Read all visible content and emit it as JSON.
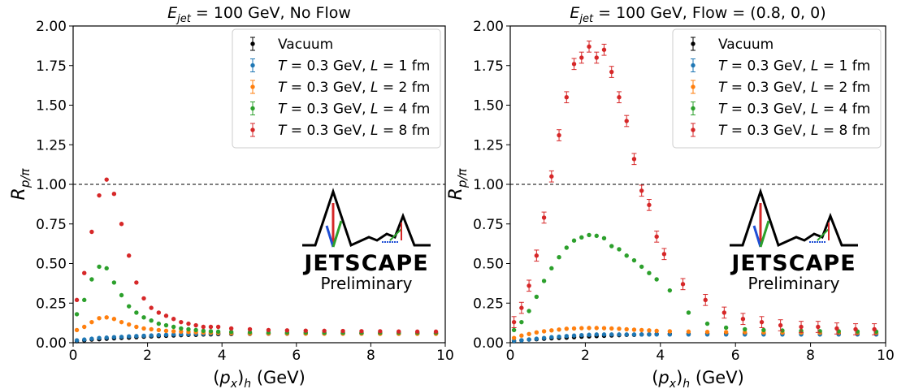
{
  "chart_data": [
    {
      "type": "scatter",
      "title": "E_jet = 100 GeV, No Flow",
      "title_parts": {
        "sym": "E",
        "sub": "jet",
        "rest": " = 100 GeV, No Flow"
      },
      "xlabel": "(p_x)_h (GeV)",
      "xlabel_parts": {
        "open": "(",
        "sym": "p",
        "sub": "x",
        "close": ")",
        "sub2": "h",
        "rest": " (GeV)"
      },
      "ylabel": "R_p/π",
      "ylabel_parts": {
        "sym": "R",
        "sub": "p/π"
      },
      "xlim": [
        0,
        10
      ],
      "ylim": [
        0,
        2
      ],
      "xticks": [
        "0",
        "2",
        "4",
        "6",
        "8",
        "10"
      ],
      "yticks": [
        "0.00",
        "0.25",
        "0.50",
        "0.75",
        "1.00",
        "1.25",
        "1.50",
        "1.75",
        "2.00"
      ],
      "reference_line": 1.0,
      "grid": false,
      "legend_position": "top-right",
      "logo": {
        "text": "JETSCAPE",
        "subtext": "Preliminary"
      },
      "series": [
        {
          "name": "Vacuum",
          "color": "#000000",
          "x": [
            0.1,
            0.3,
            0.5,
            0.7,
            0.9,
            1.1,
            1.3,
            1.5,
            1.7,
            1.9,
            2.1,
            2.3,
            2.5,
            2.7,
            2.9,
            3.1,
            3.3,
            3.5,
            3.7,
            3.9,
            4.25,
            4.75,
            5.25,
            5.75,
            6.25,
            6.75,
            7.25,
            7.75,
            8.25,
            8.75,
            9.25,
            9.75
          ],
          "y": [
            0.01,
            0.015,
            0.02,
            0.022,
            0.025,
            0.028,
            0.03,
            0.032,
            0.035,
            0.038,
            0.04,
            0.042,
            0.044,
            0.046,
            0.048,
            0.05,
            0.05,
            0.052,
            0.053,
            0.054,
            0.055,
            0.056,
            0.057,
            0.057,
            0.058,
            0.058,
            0.058,
            0.058,
            0.058,
            0.058,
            0.058,
            0.058
          ],
          "err": 0.006
        },
        {
          "name": "T = 0.3 GeV, L = 1 fm",
          "label_parts": {
            "T": "T",
            "mid": " = 0.3 GeV, ",
            "L": "L",
            "end": " = 1 fm"
          },
          "color": "#1f77b4",
          "x": [
            0.1,
            0.3,
            0.5,
            0.7,
            0.9,
            1.1,
            1.3,
            1.5,
            1.7,
            1.9,
            2.1,
            2.3,
            2.5,
            2.7,
            2.9,
            3.1,
            3.3,
            3.5,
            3.7,
            3.9,
            4.25,
            4.75,
            5.25,
            5.75,
            6.25,
            6.75,
            7.25,
            7.75,
            8.25,
            8.75,
            9.25,
            9.75
          ],
          "y": [
            0.015,
            0.02,
            0.025,
            0.03,
            0.032,
            0.035,
            0.037,
            0.04,
            0.042,
            0.044,
            0.046,
            0.048,
            0.05,
            0.052,
            0.053,
            0.054,
            0.055,
            0.056,
            0.057,
            0.058,
            0.058,
            0.058,
            0.058,
            0.059,
            0.059,
            0.059,
            0.059,
            0.06,
            0.06,
            0.06,
            0.06,
            0.06
          ],
          "err": 0.006
        },
        {
          "name": "T = 0.3 GeV, L = 2 fm",
          "label_parts": {
            "T": "T",
            "mid": " = 0.3 GeV, ",
            "L": "L",
            "end": " = 2 fm"
          },
          "color": "#ff7f0e",
          "x": [
            0.1,
            0.3,
            0.5,
            0.7,
            0.9,
            1.1,
            1.3,
            1.5,
            1.7,
            1.9,
            2.1,
            2.3,
            2.5,
            2.7,
            2.9,
            3.1,
            3.3,
            3.5,
            3.7,
            3.9,
            4.25,
            4.75,
            5.25,
            5.75,
            6.25,
            6.75,
            7.25,
            7.75,
            8.25,
            8.75,
            9.25,
            9.75
          ],
          "y": [
            0.08,
            0.1,
            0.13,
            0.155,
            0.16,
            0.15,
            0.13,
            0.115,
            0.1,
            0.09,
            0.085,
            0.08,
            0.075,
            0.072,
            0.07,
            0.068,
            0.066,
            0.064,
            0.063,
            0.062,
            0.06,
            0.058,
            0.058,
            0.058,
            0.057,
            0.057,
            0.057,
            0.057,
            0.056,
            0.056,
            0.056,
            0.056
          ],
          "err": 0.007
        },
        {
          "name": "T = 0.3 GeV, L = 4 fm",
          "label_parts": {
            "T": "T",
            "mid": " = 0.3 GeV, ",
            "L": "L",
            "end": " = 4 fm"
          },
          "color": "#2ca02c",
          "x": [
            0.1,
            0.3,
            0.5,
            0.7,
            0.9,
            1.1,
            1.3,
            1.5,
            1.7,
            1.9,
            2.1,
            2.3,
            2.5,
            2.7,
            2.9,
            3.1,
            3.3,
            3.5,
            3.7,
            3.9,
            4.25,
            4.75,
            5.25,
            5.75,
            6.25,
            6.75,
            7.25,
            7.75,
            8.25,
            8.75,
            9.25,
            9.75
          ],
          "y": [
            0.18,
            0.27,
            0.4,
            0.48,
            0.47,
            0.38,
            0.3,
            0.23,
            0.19,
            0.16,
            0.14,
            0.12,
            0.11,
            0.1,
            0.09,
            0.085,
            0.08,
            0.075,
            0.072,
            0.07,
            0.068,
            0.066,
            0.065,
            0.064,
            0.064,
            0.063,
            0.063,
            0.063,
            0.063,
            0.063,
            0.063,
            0.063
          ],
          "err": 0.008
        },
        {
          "name": "T = 0.3 GeV, L = 8 fm",
          "label_parts": {
            "T": "T",
            "mid": " = 0.3 GeV, ",
            "L": "L",
            "end": " = 8 fm"
          },
          "color": "#d62728",
          "x": [
            0.1,
            0.3,
            0.5,
            0.7,
            0.9,
            1.1,
            1.3,
            1.5,
            1.7,
            1.9,
            2.1,
            2.3,
            2.5,
            2.7,
            2.9,
            3.1,
            3.3,
            3.5,
            3.7,
            3.9,
            4.25,
            4.75,
            5.25,
            5.75,
            6.25,
            6.75,
            7.25,
            7.75,
            8.25,
            8.75,
            9.25,
            9.75
          ],
          "y": [
            0.27,
            0.44,
            0.7,
            0.93,
            1.03,
            0.94,
            0.75,
            0.55,
            0.38,
            0.28,
            0.22,
            0.19,
            0.17,
            0.15,
            0.13,
            0.12,
            0.11,
            0.1,
            0.1,
            0.1,
            0.09,
            0.085,
            0.08,
            0.078,
            0.076,
            0.075,
            0.074,
            0.073,
            0.072,
            0.071,
            0.07,
            0.07
          ],
          "err": 0.012
        }
      ]
    },
    {
      "type": "scatter",
      "title": "E_jet = 100 GeV, Flow = (0.8, 0, 0)",
      "title_parts": {
        "sym": "E",
        "sub": "jet",
        "rest": " = 100 GeV, Flow = (0.8, 0, 0)"
      },
      "xlabel": "(p_x)_h (GeV)",
      "xlabel_parts": {
        "open": "(",
        "sym": "p",
        "sub": "x",
        "close": ")",
        "sub2": "h",
        "rest": " (GeV)"
      },
      "ylabel": "R_p/π",
      "ylabel_parts": {
        "sym": "R",
        "sub": "p/π"
      },
      "xlim": [
        0,
        10
      ],
      "ylim": [
        0,
        2
      ],
      "xticks": [
        "0",
        "2",
        "4",
        "6",
        "8",
        "10"
      ],
      "yticks": [
        "0.00",
        "0.25",
        "0.50",
        "0.75",
        "1.00",
        "1.25",
        "1.50",
        "1.75",
        "2.00"
      ],
      "reference_line": 1.0,
      "grid": false,
      "legend_position": "top-right",
      "logo": {
        "text": "JETSCAPE",
        "subtext": "Preliminary"
      },
      "series": [
        {
          "name": "Vacuum",
          "color": "#000000",
          "x": [
            0.1,
            0.3,
            0.5,
            0.7,
            0.9,
            1.1,
            1.3,
            1.5,
            1.7,
            1.9,
            2.1,
            2.3,
            2.5,
            2.7,
            2.9,
            3.1,
            3.3,
            3.5,
            3.7,
            3.9,
            4.25,
            4.75,
            5.25,
            5.75,
            6.25,
            6.75,
            7.25,
            7.75,
            8.25,
            8.75,
            9.25,
            9.75
          ],
          "y": [
            0.01,
            0.015,
            0.02,
            0.022,
            0.025,
            0.028,
            0.03,
            0.032,
            0.035,
            0.038,
            0.04,
            0.042,
            0.044,
            0.046,
            0.048,
            0.05,
            0.05,
            0.052,
            0.053,
            0.054,
            0.055,
            0.056,
            0.057,
            0.057,
            0.058,
            0.058,
            0.058,
            0.058,
            0.058,
            0.058,
            0.058,
            0.058
          ],
          "err": 0.006
        },
        {
          "name": "T = 0.3 GeV, L = 1 fm",
          "label_parts": {
            "T": "T",
            "mid": " = 0.3 GeV, ",
            "L": "L",
            "end": " = 1 fm"
          },
          "color": "#1f77b4",
          "x": [
            0.1,
            0.3,
            0.5,
            0.7,
            0.9,
            1.1,
            1.3,
            1.5,
            1.7,
            1.9,
            2.1,
            2.3,
            2.5,
            2.7,
            2.9,
            3.1,
            3.3,
            3.5,
            3.7,
            3.9,
            4.25,
            4.75,
            5.25,
            5.75,
            6.25,
            6.75,
            7.25,
            7.75,
            8.25,
            8.75,
            9.25,
            9.75
          ],
          "y": [
            0.012,
            0.015,
            0.02,
            0.025,
            0.03,
            0.035,
            0.038,
            0.042,
            0.045,
            0.048,
            0.05,
            0.052,
            0.052,
            0.052,
            0.052,
            0.052,
            0.052,
            0.052,
            0.052,
            0.052,
            0.052,
            0.052,
            0.052,
            0.052,
            0.052,
            0.052,
            0.052,
            0.052,
            0.052,
            0.052,
            0.052,
            0.052
          ],
          "err": 0.006
        },
        {
          "name": "T = 0.3 GeV, L = 2 fm",
          "label_parts": {
            "T": "T",
            "mid": " = 0.3 GeV, ",
            "L": "L",
            "end": " = 2 fm"
          },
          "color": "#ff7f0e",
          "x": [
            0.1,
            0.3,
            0.5,
            0.7,
            0.9,
            1.1,
            1.3,
            1.5,
            1.7,
            1.9,
            2.1,
            2.3,
            2.5,
            2.7,
            2.9,
            3.1,
            3.3,
            3.5,
            3.7,
            3.9,
            4.25,
            4.75,
            5.25,
            5.75,
            6.25,
            6.75,
            7.25,
            7.75,
            8.25,
            8.75,
            9.25,
            9.75
          ],
          "y": [
            0.03,
            0.045,
            0.055,
            0.065,
            0.072,
            0.078,
            0.083,
            0.088,
            0.09,
            0.092,
            0.093,
            0.093,
            0.092,
            0.09,
            0.088,
            0.085,
            0.082,
            0.08,
            0.078,
            0.075,
            0.072,
            0.07,
            0.068,
            0.067,
            0.066,
            0.065,
            0.064,
            0.064,
            0.063,
            0.063,
            0.063,
            0.063
          ],
          "err": 0.007
        },
        {
          "name": "T = 0.3 GeV, L = 4 fm",
          "label_parts": {
            "T": "T",
            "mid": " = 0.3 GeV, ",
            "L": "L",
            "end": " = 4 fm"
          },
          "color": "#2ca02c",
          "x": [
            0.1,
            0.3,
            0.5,
            0.7,
            0.9,
            1.1,
            1.3,
            1.5,
            1.7,
            1.9,
            2.1,
            2.3,
            2.5,
            2.7,
            2.9,
            3.1,
            3.3,
            3.5,
            3.7,
            3.9,
            4.25,
            4.75,
            5.25,
            5.75,
            6.25,
            6.75,
            7.25,
            7.75,
            8.25,
            8.75,
            9.25,
            9.75
          ],
          "y": [
            0.08,
            0.13,
            0.2,
            0.29,
            0.39,
            0.47,
            0.54,
            0.6,
            0.645,
            0.665,
            0.68,
            0.675,
            0.66,
            0.61,
            0.59,
            0.55,
            0.52,
            0.48,
            0.44,
            0.4,
            0.33,
            0.19,
            0.12,
            0.095,
            0.085,
            0.08,
            0.077,
            0.075,
            0.073,
            0.072,
            0.071,
            0.07
          ],
          "err": 0.009
        },
        {
          "name": "T = 0.3 GeV, L = 8 fm",
          "label_parts": {
            "T": "T",
            "mid": " = 0.3 GeV, ",
            "L": "L",
            "end": " = 8 fm"
          },
          "color": "#d62728",
          "x": [
            0.1,
            0.3,
            0.5,
            0.7,
            0.9,
            1.1,
            1.3,
            1.5,
            1.7,
            1.9,
            2.1,
            2.3,
            2.5,
            2.7,
            2.9,
            3.1,
            3.3,
            3.5,
            3.7,
            3.9,
            4.1,
            4.6,
            5.2,
            5.7,
            6.2,
            6.7,
            7.2,
            7.75,
            8.2,
            8.7,
            9.2,
            9.7
          ],
          "y": [
            0.13,
            0.22,
            0.36,
            0.55,
            0.79,
            1.05,
            1.31,
            1.55,
            1.76,
            1.8,
            1.87,
            1.8,
            1.85,
            1.71,
            1.55,
            1.4,
            1.16,
            0.96,
            0.87,
            0.67,
            0.56,
            0.37,
            0.27,
            0.19,
            0.15,
            0.13,
            0.11,
            0.1,
            0.1,
            0.09,
            0.085,
            0.085
          ],
          "err": 0.035
        }
      ]
    }
  ]
}
